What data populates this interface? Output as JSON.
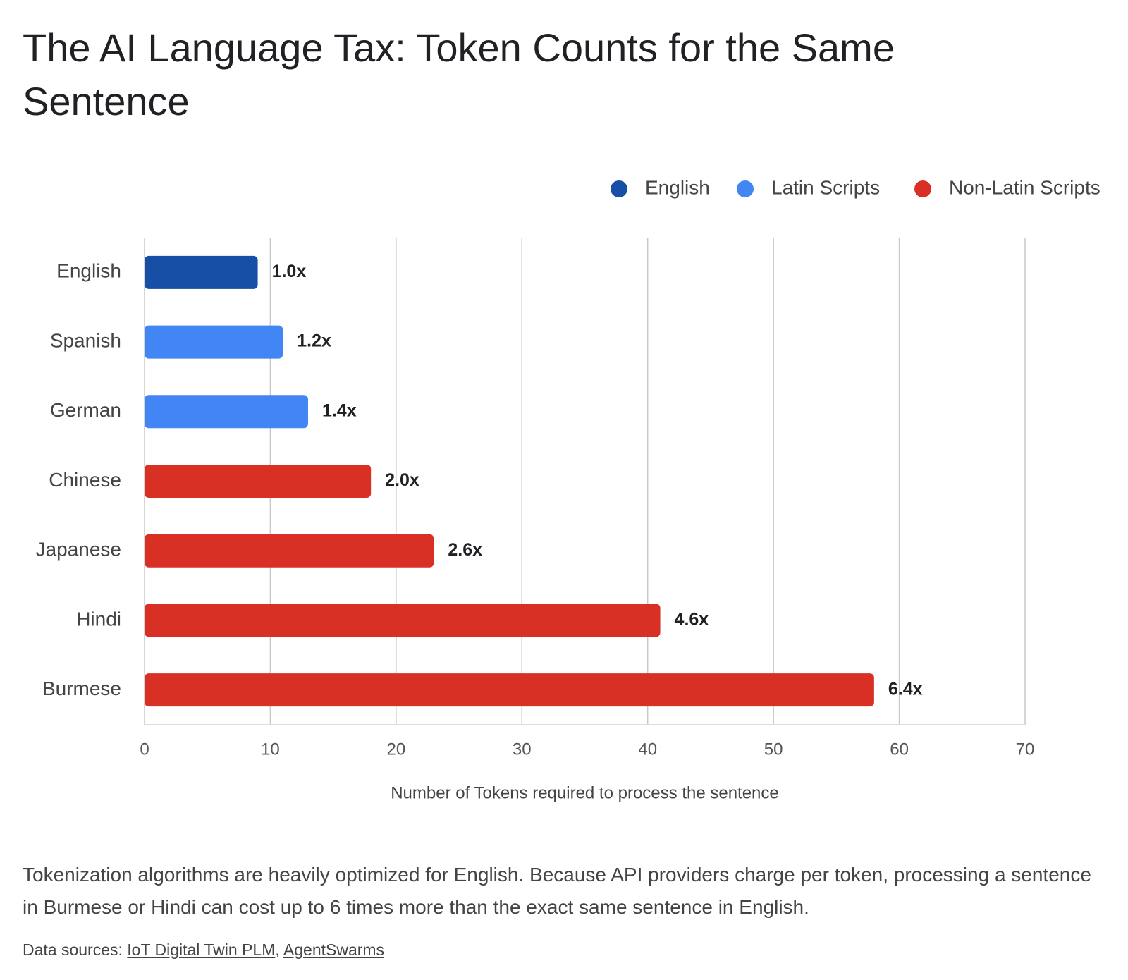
{
  "chart_data": {
    "type": "bar",
    "title": "The AI Language Tax: Token Counts for the Same Sentence",
    "categories": [
      "English",
      "Spanish",
      "German",
      "Chinese",
      "Japanese",
      "Hindi",
      "Burmese"
    ],
    "series": [
      {
        "name": "English",
        "color": "#174ea6",
        "values": [
          9,
          null,
          null,
          null,
          null,
          null,
          null
        ]
      },
      {
        "name": "Latin Scripts",
        "color": "#4285f4",
        "values": [
          null,
          11,
          13,
          null,
          null,
          null,
          null
        ]
      },
      {
        "name": "Non-Latin Scripts",
        "color": "#d93025",
        "values": [
          null,
          null,
          null,
          18,
          23,
          41,
          58
        ]
      }
    ],
    "bar_labels": [
      "1.0x",
      "1.2x",
      "1.4x",
      "2.0x",
      "2.6x",
      "4.6x",
      "6.4x"
    ],
    "xlabel": "Number of Tokens required to process the sentence",
    "xlim": [
      0,
      70
    ],
    "xticks": [
      0,
      10,
      20,
      30,
      40,
      50,
      60,
      70
    ],
    "grid": true,
    "legend": "top-right"
  },
  "caption": "Tokenization algorithms are heavily optimized for English. Because API providers charge per token, processing a sentence in Burmese or Hindi can cost up to 6 times more than the exact same sentence in English.",
  "sources": {
    "label": "Data sources:",
    "links": [
      "IoT Digital Twin PLM",
      "AgentSwarms"
    ],
    "separator": ","
  }
}
